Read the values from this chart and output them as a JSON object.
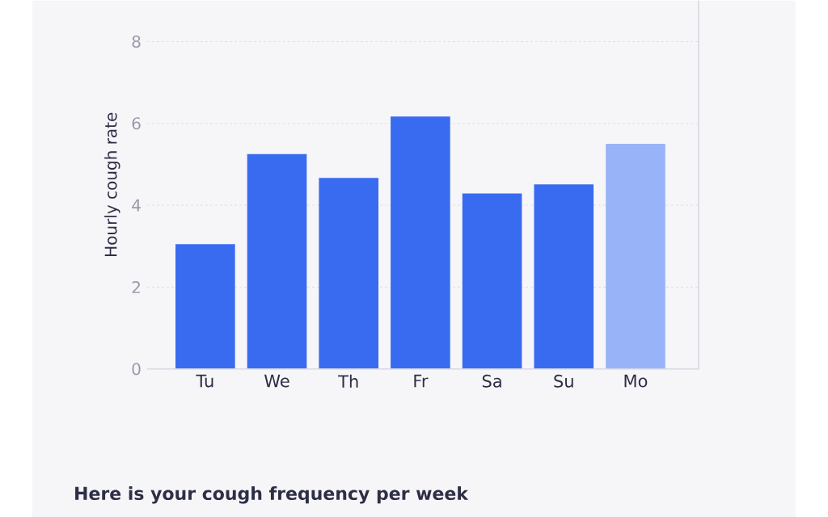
{
  "chart_data": {
    "type": "bar",
    "ylabel": "Hourly cough rate",
    "categories": [
      "Tu",
      "We",
      "Th",
      "Fr",
      "Sa",
      "Su",
      "Mo"
    ],
    "values": [
      3.05,
      5.25,
      4.67,
      6.17,
      4.29,
      4.51,
      5.5
    ],
    "colors": [
      "#386bf0",
      "#386bf0",
      "#386bf0",
      "#386bf0",
      "#386bf0",
      "#386bf0",
      "#98b3f7"
    ],
    "ylim": [
      0,
      9
    ],
    "yticks": [
      0,
      2,
      4,
      6,
      8
    ],
    "grid": "y",
    "annotations": [
      "Here is your cough frequency per week"
    ]
  }
}
